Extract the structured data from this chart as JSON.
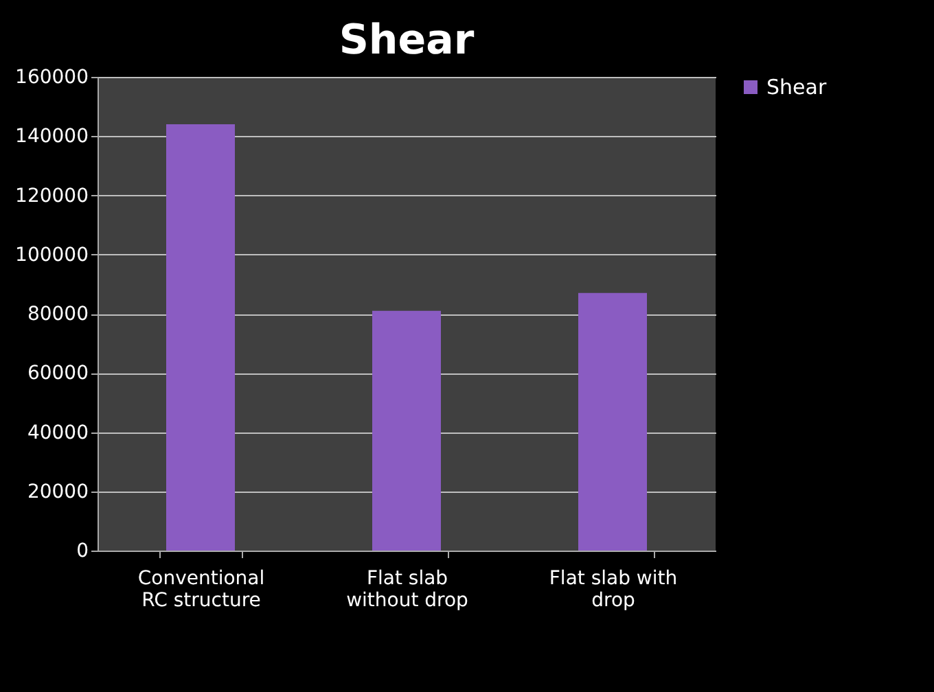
{
  "chart_data": {
    "type": "bar",
    "title": "Shear",
    "categories": [
      "Conventional RC structure",
      "Flat slab without drop",
      "Flat slab with drop"
    ],
    "series": [
      {
        "name": "Shear",
        "color": "#8a5cc2",
        "values": [
          144000,
          81000,
          87000
        ]
      }
    ],
    "ylim": [
      0,
      160000
    ],
    "yticks": [
      0,
      20000,
      40000,
      60000,
      80000,
      100000,
      120000,
      140000,
      160000
    ],
    "grid": "y",
    "legend": "right"
  }
}
